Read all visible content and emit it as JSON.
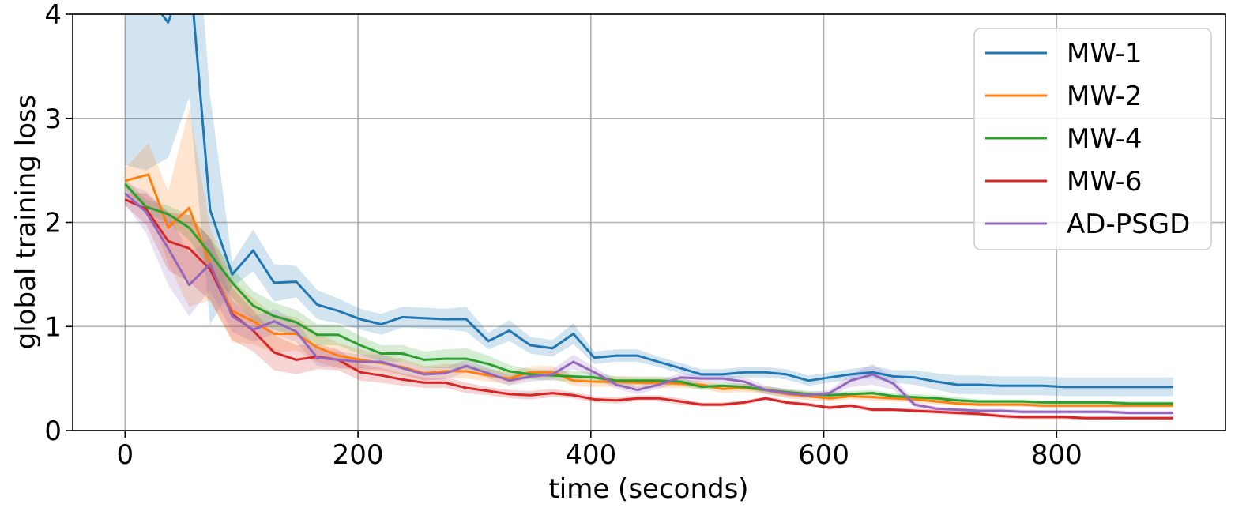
{
  "chart_data": {
    "type": "line",
    "title": "",
    "xlabel": "time (seconds)",
    "ylabel": "global training loss",
    "xlim": [
      -45,
      945
    ],
    "ylim": [
      0,
      4
    ],
    "xticks": [
      0,
      200,
      400,
      600,
      800
    ],
    "yticks": [
      0,
      1,
      2,
      3,
      4
    ],
    "xtick_labels": [
      "0",
      "200",
      "400",
      "600",
      "800"
    ],
    "ytick_labels": [
      "0",
      "1",
      "2",
      "3",
      "4"
    ],
    "grid": true,
    "legend_position": "top-right",
    "series": [
      {
        "name": "MW-1",
        "color": "#1f77b4",
        "x": [
          0,
          18,
          37,
          55,
          73,
          92,
          110,
          128,
          147,
          165,
          183,
          202,
          220,
          238,
          257,
          275,
          293,
          312,
          330,
          348,
          367,
          385,
          403,
          422,
          440,
          458,
          477,
          495,
          513,
          532,
          550,
          568,
          587,
          605,
          623,
          642,
          660,
          678,
          697,
          715,
          733,
          752,
          770,
          788,
          807,
          825,
          843,
          862,
          880,
          900
        ],
        "y": [
          4.4,
          4.2,
          3.92,
          4.5,
          2.12,
          1.5,
          1.73,
          1.42,
          1.43,
          1.21,
          1.15,
          1.07,
          1.02,
          1.09,
          1.08,
          1.07,
          1.07,
          0.86,
          0.96,
          0.82,
          0.79,
          0.93,
          0.7,
          0.72,
          0.72,
          0.66,
          0.6,
          0.54,
          0.54,
          0.56,
          0.56,
          0.54,
          0.48,
          0.51,
          0.54,
          0.56,
          0.52,
          0.51,
          0.47,
          0.44,
          0.44,
          0.43,
          0.43,
          0.43,
          0.42,
          0.42,
          0.42,
          0.42,
          0.42,
          0.42
        ],
        "band": [
          1.85,
          1.7,
          1.3,
          1.3,
          1.1,
          0.12,
          0.2,
          0.18,
          0.15,
          0.14,
          0.12,
          0.1,
          0.1,
          0.1,
          0.1,
          0.1,
          0.12,
          0.08,
          0.1,
          0.08,
          0.08,
          0.1,
          0.06,
          0.06,
          0.06,
          0.05,
          0.05,
          0.05,
          0.05,
          0.05,
          0.05,
          0.05,
          0.05,
          0.05,
          0.05,
          0.06,
          0.06,
          0.07,
          0.08,
          0.09,
          0.09,
          0.09,
          0.09,
          0.09,
          0.09,
          0.09,
          0.09,
          0.09,
          0.09,
          0.09
        ]
      },
      {
        "name": "MW-2",
        "color": "#ff7f0e",
        "x": [
          0,
          20,
          37,
          55,
          73,
          92,
          110,
          128,
          147,
          165,
          183,
          202,
          220,
          238,
          257,
          275,
          293,
          312,
          330,
          348,
          367,
          385,
          403,
          422,
          440,
          458,
          477,
          495,
          513,
          532,
          550,
          568,
          587,
          605,
          623,
          642,
          660,
          678,
          697,
          715,
          733,
          752,
          770,
          788,
          807,
          825,
          843,
          862,
          880,
          900
        ],
        "y": [
          2.4,
          2.46,
          1.95,
          2.14,
          1.6,
          1.15,
          1.05,
          0.93,
          0.93,
          0.8,
          0.72,
          0.68,
          0.65,
          0.61,
          0.55,
          0.57,
          0.57,
          0.53,
          0.5,
          0.56,
          0.56,
          0.48,
          0.47,
          0.47,
          0.46,
          0.46,
          0.45,
          0.44,
          0.4,
          0.41,
          0.39,
          0.35,
          0.33,
          0.31,
          0.33,
          0.32,
          0.31,
          0.3,
          0.28,
          0.26,
          0.25,
          0.25,
          0.25,
          0.24,
          0.24,
          0.24,
          0.24,
          0.24,
          0.24,
          0.24
        ],
        "band": [
          0.12,
          0.3,
          0.35,
          0.95,
          0.35,
          0.3,
          0.22,
          0.18,
          0.16,
          0.14,
          0.12,
          0.1,
          0.08,
          0.08,
          0.07,
          0.07,
          0.07,
          0.06,
          0.06,
          0.06,
          0.06,
          0.05,
          0.05,
          0.05,
          0.05,
          0.05,
          0.04,
          0.04,
          0.04,
          0.04,
          0.04,
          0.04,
          0.04,
          0.03,
          0.03,
          0.03,
          0.03,
          0.03,
          0.03,
          0.02,
          0.02,
          0.02,
          0.02,
          0.02,
          0.02,
          0.02,
          0.02,
          0.02,
          0.02,
          0.02
        ]
      },
      {
        "name": "MW-4",
        "color": "#2ca02c",
        "x": [
          0,
          18,
          37,
          55,
          73,
          92,
          110,
          128,
          147,
          165,
          183,
          202,
          220,
          238,
          257,
          275,
          293,
          312,
          330,
          348,
          367,
          385,
          403,
          422,
          440,
          458,
          477,
          495,
          513,
          532,
          550,
          568,
          587,
          605,
          623,
          642,
          660,
          678,
          697,
          715,
          733,
          752,
          770,
          788,
          807,
          825,
          843,
          862,
          880,
          900
        ],
        "y": [
          2.37,
          2.15,
          2.08,
          1.95,
          1.7,
          1.42,
          1.2,
          1.1,
          1.04,
          0.92,
          0.92,
          0.82,
          0.74,
          0.74,
          0.68,
          0.69,
          0.69,
          0.64,
          0.57,
          0.54,
          0.53,
          0.52,
          0.51,
          0.48,
          0.48,
          0.48,
          0.47,
          0.42,
          0.43,
          0.42,
          0.39,
          0.37,
          0.35,
          0.34,
          0.35,
          0.36,
          0.33,
          0.32,
          0.31,
          0.29,
          0.28,
          0.28,
          0.28,
          0.27,
          0.27,
          0.27,
          0.27,
          0.26,
          0.26,
          0.26
        ],
        "band": [
          0.05,
          0.07,
          0.08,
          0.12,
          0.15,
          0.14,
          0.14,
          0.13,
          0.12,
          0.1,
          0.1,
          0.09,
          0.08,
          0.08,
          0.08,
          0.09,
          0.1,
          0.08,
          0.06,
          0.05,
          0.05,
          0.05,
          0.05,
          0.04,
          0.04,
          0.04,
          0.04,
          0.03,
          0.03,
          0.03,
          0.03,
          0.03,
          0.03,
          0.03,
          0.03,
          0.03,
          0.03,
          0.03,
          0.03,
          0.03,
          0.02,
          0.02,
          0.02,
          0.02,
          0.02,
          0.02,
          0.02,
          0.02,
          0.02,
          0.02
        ]
      },
      {
        "name": "MW-6",
        "color": "#d62728",
        "x": [
          0,
          18,
          37,
          55,
          73,
          92,
          110,
          128,
          147,
          165,
          183,
          202,
          220,
          238,
          257,
          275,
          293,
          312,
          330,
          348,
          367,
          385,
          403,
          422,
          440,
          458,
          477,
          495,
          513,
          532,
          550,
          568,
          587,
          605,
          623,
          642,
          660,
          678,
          697,
          715,
          733,
          752,
          770,
          788,
          807,
          825,
          843,
          862,
          880,
          900
        ],
        "y": [
          2.22,
          2.13,
          1.82,
          1.75,
          1.55,
          1.12,
          0.96,
          0.75,
          0.68,
          0.71,
          0.68,
          0.56,
          0.53,
          0.49,
          0.46,
          0.46,
          0.41,
          0.38,
          0.35,
          0.34,
          0.36,
          0.34,
          0.3,
          0.29,
          0.31,
          0.31,
          0.28,
          0.25,
          0.25,
          0.27,
          0.31,
          0.27,
          0.25,
          0.22,
          0.24,
          0.2,
          0.2,
          0.19,
          0.18,
          0.17,
          0.16,
          0.14,
          0.13,
          0.13,
          0.13,
          0.12,
          0.12,
          0.12,
          0.12,
          0.12
        ],
        "band": [
          0.06,
          0.15,
          0.28,
          0.32,
          0.3,
          0.25,
          0.2,
          0.17,
          0.14,
          0.12,
          0.1,
          0.08,
          0.07,
          0.06,
          0.05,
          0.05,
          0.05,
          0.04,
          0.04,
          0.04,
          0.04,
          0.03,
          0.03,
          0.03,
          0.03,
          0.03,
          0.03,
          0.02,
          0.02,
          0.02,
          0.02,
          0.02,
          0.02,
          0.02,
          0.02,
          0.02,
          0.02,
          0.02,
          0.02,
          0.02,
          0.02,
          0.02,
          0.02,
          0.02,
          0.02,
          0.02,
          0.02,
          0.02,
          0.02,
          0.02
        ]
      },
      {
        "name": "AD-PSGD",
        "color": "#9467bd",
        "x": [
          0,
          18,
          37,
          55,
          73,
          92,
          110,
          128,
          147,
          165,
          183,
          202,
          220,
          238,
          257,
          275,
          293,
          312,
          330,
          348,
          367,
          385,
          403,
          422,
          440,
          458,
          477,
          495,
          513,
          532,
          550,
          568,
          587,
          605,
          623,
          642,
          660,
          678,
          697,
          715,
          733,
          752,
          770,
          788,
          807,
          825,
          843,
          862,
          880,
          900
        ],
        "y": [
          2.28,
          2.1,
          1.75,
          1.4,
          1.6,
          1.1,
          0.97,
          1.05,
          0.95,
          0.7,
          0.68,
          0.66,
          0.66,
          0.6,
          0.54,
          0.55,
          0.62,
          0.55,
          0.48,
          0.52,
          0.54,
          0.66,
          0.56,
          0.44,
          0.39,
          0.44,
          0.51,
          0.5,
          0.5,
          0.47,
          0.39,
          0.36,
          0.34,
          0.36,
          0.48,
          0.54,
          0.45,
          0.25,
          0.21,
          0.2,
          0.19,
          0.19,
          0.18,
          0.18,
          0.18,
          0.18,
          0.18,
          0.17,
          0.17,
          0.17
        ],
        "band": [
          0.1,
          0.2,
          0.35,
          0.3,
          0.25,
          0.15,
          0.12,
          0.12,
          0.1,
          0.08,
          0.08,
          0.07,
          0.07,
          0.06,
          0.06,
          0.06,
          0.06,
          0.05,
          0.05,
          0.05,
          0.05,
          0.07,
          0.05,
          0.04,
          0.04,
          0.04,
          0.04,
          0.04,
          0.04,
          0.04,
          0.04,
          0.04,
          0.03,
          0.03,
          0.06,
          0.1,
          0.06,
          0.03,
          0.02,
          0.02,
          0.02,
          0.02,
          0.02,
          0.02,
          0.02,
          0.02,
          0.02,
          0.02,
          0.02,
          0.02
        ]
      }
    ]
  }
}
